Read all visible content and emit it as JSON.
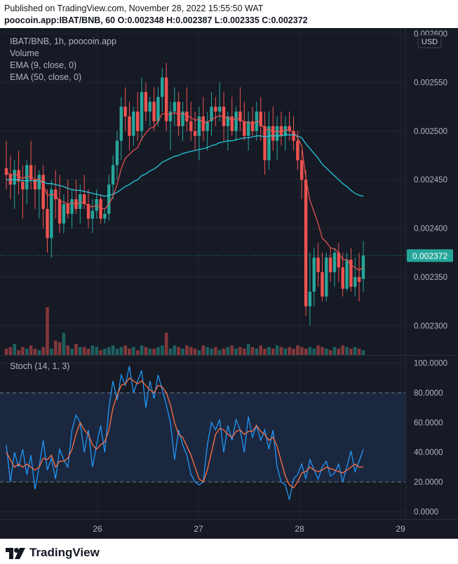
{
  "header": {
    "published_line": "Published on TradingView.com, November 28, 2022 15:55:50 WAT",
    "symbol_line": "poocoin.app:IBAT/BNB, 60  O:0.002348  H:0.002387  L:0.002335  C:0.002372"
  },
  "legend": {
    "title": "IBAT/BNB, 1h, poocoin.app",
    "volume": "Volume",
    "ema9": "EMA (9, close, 0)",
    "ema50": "EMA (50, close, 0)",
    "stoch": "Stoch (14, 1, 3)"
  },
  "currency_button": "USD",
  "last_price_label": "0.002372",
  "footer": {
    "brand": "TradingView"
  },
  "colors": {
    "background": "#161a25",
    "up": "#26a69a",
    "down": "#ef5350",
    "ema9": "#ef5350",
    "ema50": "#26c6da",
    "stoch_k": "#2196f3",
    "stoch_d": "#ff7043",
    "band_fill": "#1c2a44"
  },
  "chart_data": [
    {
      "type": "candlestick",
      "title": "IBAT/BNB, 1h, poocoin.app",
      "x_ticks": [
        "26",
        "27",
        "28",
        "29"
      ],
      "y_ticks": [
        "0.002300",
        "0.002350",
        "0.002400",
        "0.002450",
        "0.002500",
        "0.002550",
        "0.002600"
      ],
      "ylim": [
        0.00227,
        0.0026
      ],
      "last_price": 0.002372,
      "candles": [
        {
          "o": 0.002462,
          "h": 0.00249,
          "l": 0.00244,
          "c": 0.002455
        },
        {
          "o": 0.002455,
          "h": 0.002475,
          "l": 0.00243,
          "c": 0.002445
        },
        {
          "o": 0.002445,
          "h": 0.00247,
          "l": 0.00242,
          "c": 0.00246
        },
        {
          "o": 0.00246,
          "h": 0.00248,
          "l": 0.002435,
          "c": 0.002448
        },
        {
          "o": 0.002448,
          "h": 0.002465,
          "l": 0.00241,
          "c": 0.00244
        },
        {
          "o": 0.00244,
          "h": 0.00247,
          "l": 0.002425,
          "c": 0.002465
        },
        {
          "o": 0.002465,
          "h": 0.00249,
          "l": 0.00244,
          "c": 0.00245
        },
        {
          "o": 0.00245,
          "h": 0.002465,
          "l": 0.00242,
          "c": 0.00244
        },
        {
          "o": 0.00244,
          "h": 0.00246,
          "l": 0.00241,
          "c": 0.002455
        },
        {
          "o": 0.002455,
          "h": 0.002465,
          "l": 0.0024,
          "c": 0.00242
        },
        {
          "o": 0.00242,
          "h": 0.00244,
          "l": 0.002375,
          "c": 0.00239
        },
        {
          "o": 0.00239,
          "h": 0.00245,
          "l": 0.00237,
          "c": 0.00244
        },
        {
          "o": 0.00244,
          "h": 0.00246,
          "l": 0.00241,
          "c": 0.00243
        },
        {
          "o": 0.00243,
          "h": 0.002455,
          "l": 0.002395,
          "c": 0.002405
        },
        {
          "o": 0.002405,
          "h": 0.002435,
          "l": 0.002395,
          "c": 0.002425
        },
        {
          "o": 0.002425,
          "h": 0.00245,
          "l": 0.00241,
          "c": 0.002415
        },
        {
          "o": 0.002415,
          "h": 0.00244,
          "l": 0.0024,
          "c": 0.00243
        },
        {
          "o": 0.00243,
          "h": 0.00245,
          "l": 0.002415,
          "c": 0.00242
        },
        {
          "o": 0.00242,
          "h": 0.002445,
          "l": 0.002405,
          "c": 0.002435
        },
        {
          "o": 0.002435,
          "h": 0.002455,
          "l": 0.00242,
          "c": 0.002425
        },
        {
          "o": 0.002425,
          "h": 0.00244,
          "l": 0.0024,
          "c": 0.00241
        },
        {
          "o": 0.00241,
          "h": 0.00243,
          "l": 0.002395,
          "c": 0.002418
        },
        {
          "o": 0.002418,
          "h": 0.00244,
          "l": 0.00241,
          "c": 0.00243
        },
        {
          "o": 0.00243,
          "h": 0.002435,
          "l": 0.002405,
          "c": 0.00241
        },
        {
          "o": 0.00241,
          "h": 0.00242,
          "l": 0.002405,
          "c": 0.002415
        },
        {
          "o": 0.002415,
          "h": 0.002455,
          "l": 0.002408,
          "c": 0.002445
        },
        {
          "o": 0.002445,
          "h": 0.002475,
          "l": 0.00243,
          "c": 0.002465
        },
        {
          "o": 0.002465,
          "h": 0.0025,
          "l": 0.00245,
          "c": 0.00249
        },
        {
          "o": 0.00249,
          "h": 0.002535,
          "l": 0.00247,
          "c": 0.002525
        },
        {
          "o": 0.002525,
          "h": 0.002545,
          "l": 0.0025,
          "c": 0.002515
        },
        {
          "o": 0.002515,
          "h": 0.00253,
          "l": 0.00248,
          "c": 0.002495
        },
        {
          "o": 0.002495,
          "h": 0.002525,
          "l": 0.002485,
          "c": 0.00252
        },
        {
          "o": 0.00252,
          "h": 0.00254,
          "l": 0.00249,
          "c": 0.0025
        },
        {
          "o": 0.0025,
          "h": 0.002555,
          "l": 0.00249,
          "c": 0.00254
        },
        {
          "o": 0.00254,
          "h": 0.00255,
          "l": 0.00251,
          "c": 0.00252
        },
        {
          "o": 0.00252,
          "h": 0.002535,
          "l": 0.002505,
          "c": 0.00253
        },
        {
          "o": 0.00253,
          "h": 0.002545,
          "l": 0.0025,
          "c": 0.00251
        },
        {
          "o": 0.00251,
          "h": 0.002545,
          "l": 0.002505,
          "c": 0.002535
        },
        {
          "o": 0.002535,
          "h": 0.002565,
          "l": 0.00252,
          "c": 0.002555
        },
        {
          "o": 0.002555,
          "h": 0.00257,
          "l": 0.0025,
          "c": 0.00251
        },
        {
          "o": 0.00251,
          "h": 0.00253,
          "l": 0.00248,
          "c": 0.00252
        },
        {
          "o": 0.00252,
          "h": 0.002545,
          "l": 0.002505,
          "c": 0.00253
        },
        {
          "o": 0.00253,
          "h": 0.00254,
          "l": 0.002495,
          "c": 0.002505
        },
        {
          "o": 0.002505,
          "h": 0.00253,
          "l": 0.00249,
          "c": 0.00252
        },
        {
          "o": 0.00252,
          "h": 0.002545,
          "l": 0.0025,
          "c": 0.00251
        },
        {
          "o": 0.00251,
          "h": 0.00253,
          "l": 0.00249,
          "c": 0.0025
        },
        {
          "o": 0.0025,
          "h": 0.00252,
          "l": 0.00248,
          "c": 0.002495
        },
        {
          "o": 0.002495,
          "h": 0.002525,
          "l": 0.00247,
          "c": 0.002515
        },
        {
          "o": 0.002515,
          "h": 0.002535,
          "l": 0.00249,
          "c": 0.0025
        },
        {
          "o": 0.0025,
          "h": 0.00252,
          "l": 0.00248,
          "c": 0.00251
        },
        {
          "o": 0.00251,
          "h": 0.00254,
          "l": 0.002495,
          "c": 0.002525
        },
        {
          "o": 0.002525,
          "h": 0.002535,
          "l": 0.002505,
          "c": 0.00252
        },
        {
          "o": 0.00252,
          "h": 0.00255,
          "l": 0.00251,
          "c": 0.002525
        },
        {
          "o": 0.002525,
          "h": 0.00254,
          "l": 0.00249,
          "c": 0.002505
        },
        {
          "o": 0.002505,
          "h": 0.00252,
          "l": 0.00248,
          "c": 0.002515
        },
        {
          "o": 0.002515,
          "h": 0.002535,
          "l": 0.002495,
          "c": 0.0025
        },
        {
          "o": 0.0025,
          "h": 0.002525,
          "l": 0.00249,
          "c": 0.00252
        },
        {
          "o": 0.00252,
          "h": 0.002545,
          "l": 0.0025,
          "c": 0.00251
        },
        {
          "o": 0.00251,
          "h": 0.00253,
          "l": 0.00249,
          "c": 0.002495
        },
        {
          "o": 0.002495,
          "h": 0.00252,
          "l": 0.00248,
          "c": 0.00251
        },
        {
          "o": 0.00251,
          "h": 0.002525,
          "l": 0.002495,
          "c": 0.0025
        },
        {
          "o": 0.0025,
          "h": 0.00253,
          "l": 0.00249,
          "c": 0.00252
        },
        {
          "o": 0.00252,
          "h": 0.002535,
          "l": 0.00249,
          "c": 0.002505
        },
        {
          "o": 0.002505,
          "h": 0.00252,
          "l": 0.002455,
          "c": 0.00247
        },
        {
          "o": 0.00247,
          "h": 0.00252,
          "l": 0.00246,
          "c": 0.002505
        },
        {
          "o": 0.002505,
          "h": 0.002525,
          "l": 0.00248,
          "c": 0.00249
        },
        {
          "o": 0.00249,
          "h": 0.002515,
          "l": 0.00247,
          "c": 0.002505
        },
        {
          "o": 0.002505,
          "h": 0.00252,
          "l": 0.002485,
          "c": 0.002495
        },
        {
          "o": 0.002495,
          "h": 0.002515,
          "l": 0.00248,
          "c": 0.002505
        },
        {
          "o": 0.002505,
          "h": 0.00252,
          "l": 0.00249,
          "c": 0.0025
        },
        {
          "o": 0.0025,
          "h": 0.002515,
          "l": 0.00248,
          "c": 0.00249
        },
        {
          "o": 0.00249,
          "h": 0.0025,
          "l": 0.00246,
          "c": 0.00247
        },
        {
          "o": 0.00247,
          "h": 0.00248,
          "l": 0.00243,
          "c": 0.00245
        },
        {
          "o": 0.00245,
          "h": 0.00246,
          "l": 0.00231,
          "c": 0.00232
        },
        {
          "o": 0.00232,
          "h": 0.002375,
          "l": 0.0023,
          "c": 0.002335
        },
        {
          "o": 0.002335,
          "h": 0.00238,
          "l": 0.00232,
          "c": 0.00237
        },
        {
          "o": 0.00237,
          "h": 0.002385,
          "l": 0.00234,
          "c": 0.002355
        },
        {
          "o": 0.002355,
          "h": 0.002375,
          "l": 0.002325,
          "c": 0.00233
        },
        {
          "o": 0.00233,
          "h": 0.002375,
          "l": 0.002325,
          "c": 0.00237
        },
        {
          "o": 0.00237,
          "h": 0.00238,
          "l": 0.002345,
          "c": 0.002355
        },
        {
          "o": 0.002355,
          "h": 0.00238,
          "l": 0.00234,
          "c": 0.002375
        },
        {
          "o": 0.002375,
          "h": 0.002385,
          "l": 0.002345,
          "c": 0.00236
        },
        {
          "o": 0.00236,
          "h": 0.002375,
          "l": 0.00233,
          "c": 0.002338
        },
        {
          "o": 0.002338,
          "h": 0.002375,
          "l": 0.002335,
          "c": 0.002368
        },
        {
          "o": 0.002368,
          "h": 0.00238,
          "l": 0.002335,
          "c": 0.00234
        },
        {
          "o": 0.00234,
          "h": 0.00237,
          "l": 0.00233,
          "c": 0.00235
        },
        {
          "o": 0.00235,
          "h": 0.002375,
          "l": 0.002325,
          "c": 0.002345
        },
        {
          "o": 0.002348,
          "h": 0.002387,
          "l": 0.002335,
          "c": 0.002372
        }
      ],
      "volume": [
        4,
        5,
        7,
        3,
        5,
        4,
        6,
        4,
        3,
        5,
        30,
        4,
        9,
        8,
        14,
        6,
        4,
        7,
        5,
        5,
        4,
        6,
        5,
        3,
        4,
        5,
        6,
        4,
        5,
        6,
        4,
        5,
        3,
        6,
        5,
        4,
        4,
        5,
        6,
        14,
        4,
        6,
        5,
        4,
        6,
        5,
        4,
        3,
        6,
        5,
        4,
        5,
        3,
        4,
        5,
        6,
        4,
        5,
        4,
        7,
        5,
        4,
        6,
        4,
        5,
        4,
        6,
        5,
        4,
        5,
        4,
        6,
        5,
        4,
        5,
        4,
        6,
        5,
        4,
        3,
        5,
        4,
        6,
        5,
        4,
        5,
        4,
        3
      ],
      "ema9": [
        0.002458,
        0.002455,
        0.002456,
        0.002454,
        0.002451,
        0.002454,
        0.002453,
        0.00245,
        0.002451,
        0.002445,
        0.002434,
        0.002435,
        0.002434,
        0.002428,
        0.002427,
        0.002425,
        0.002426,
        0.002425,
        0.002427,
        0.002426,
        0.002423,
        0.002422,
        0.002424,
        0.002421,
        0.00242,
        0.002425,
        0.002433,
        0.002445,
        0.002461,
        0.002472,
        0.002476,
        0.00248,
        0.002483,
        0.002492,
        0.002498,
        0.002503,
        0.002504,
        0.00251,
        0.002518,
        0.002517,
        0.002517,
        0.002519,
        0.002517,
        0.002518,
        0.002516,
        0.002514,
        0.002511,
        0.002512,
        0.002509,
        0.002509,
        0.002512,
        0.002514,
        0.002516,
        0.002514,
        0.002514,
        0.002511,
        0.002513,
        0.002512,
        0.002509,
        0.002509,
        0.002507,
        0.00251,
        0.002509,
        0.002501,
        0.002502,
        0.002499,
        0.0025,
        0.002499,
        0.002501,
        0.002501,
        0.002499,
        0.002493,
        0.002485,
        0.002452,
        0.002429,
        0.002417,
        0.002405,
        0.00239,
        0.002386,
        0.00238,
        0.002379,
        0.002375,
        0.002368,
        0.002368,
        0.002362,
        0.00236,
        0.002357,
        0.00236
      ],
      "ema50": [
        0.00245,
        0.00245,
        0.00245,
        0.00245,
        0.002449,
        0.002449,
        0.002449,
        0.002449,
        0.002449,
        0.002448,
        0.002446,
        0.002446,
        0.002445,
        0.002444,
        0.002443,
        0.002441,
        0.00244,
        0.002439,
        0.002439,
        0.002438,
        0.002437,
        0.002436,
        0.002435,
        0.002434,
        0.002433,
        0.002434,
        0.002435,
        0.002437,
        0.00244,
        0.002443,
        0.002445,
        0.002448,
        0.00245,
        0.002454,
        0.002456,
        0.002459,
        0.002461,
        0.002464,
        0.002468,
        0.00247,
        0.002472,
        0.002474,
        0.002475,
        0.002477,
        0.002478,
        0.002479,
        0.00248,
        0.002481,
        0.002482,
        0.002483,
        0.002485,
        0.002486,
        0.002488,
        0.002489,
        0.00249,
        0.00249,
        0.002491,
        0.002492,
        0.002493,
        0.002493,
        0.002494,
        0.002495,
        0.002495,
        0.002494,
        0.002495,
        0.002495,
        0.002495,
        0.002495,
        0.002496,
        0.002496,
        0.002496,
        0.002495,
        0.002493,
        0.002487,
        0.002482,
        0.002477,
        0.002472,
        0.002466,
        0.002462,
        0.002458,
        0.002454,
        0.00245,
        0.002446,
        0.002443,
        0.002439,
        0.002436,
        0.002434,
        0.002433
      ]
    },
    {
      "type": "line",
      "title": "Stoch (14, 1, 3)",
      "y_ticks": [
        "0.0000",
        "20.0000",
        "40.0000",
        "60.0000",
        "80.0000",
        "100.0000"
      ],
      "ylim": [
        -5,
        105
      ],
      "bands": [
        20,
        80
      ],
      "series": [
        {
          "name": "K",
          "values": [
            45,
            20,
            40,
            30,
            42,
            25,
            38,
            15,
            30,
            48,
            28,
            36,
            22,
            42,
            35,
            30,
            55,
            65,
            60,
            40,
            55,
            30,
            45,
            58,
            40,
            70,
            88,
            75,
            92,
            85,
            98,
            80,
            88,
            95,
            70,
            88,
            76,
            92,
            82,
            72,
            60,
            35,
            55,
            45,
            38,
            25,
            20,
            18,
            20,
            45,
            60,
            55,
            62,
            40,
            58,
            48,
            62,
            55,
            40,
            64,
            50,
            58,
            48,
            55,
            42,
            55,
            30,
            20,
            18,
            8,
            22,
            25,
            32,
            22,
            35,
            28,
            22,
            30,
            34,
            24,
            26,
            32,
            20,
            30,
            41,
            27,
            34,
            42
          ]
        },
        {
          "name": "D",
          "values": [
            40,
            35,
            30,
            32,
            30,
            32,
            30,
            28,
            30,
            36,
            35,
            38,
            30,
            34,
            34,
            36,
            42,
            52,
            60,
            55,
            52,
            45,
            42,
            45,
            47,
            55,
            70,
            78,
            85,
            86,
            90,
            88,
            86,
            88,
            85,
            82,
            80,
            85,
            84,
            80,
            72,
            60,
            52,
            50,
            44,
            38,
            30,
            22,
            20,
            28,
            40,
            52,
            56,
            55,
            52,
            50,
            54,
            55,
            52,
            54,
            54,
            58,
            54,
            52,
            48,
            50,
            44,
            34,
            24,
            18,
            16,
            20,
            26,
            27,
            30,
            28,
            27,
            28,
            30,
            29,
            28,
            27,
            26,
            28,
            30,
            32,
            30,
            30
          ]
        }
      ]
    }
  ]
}
